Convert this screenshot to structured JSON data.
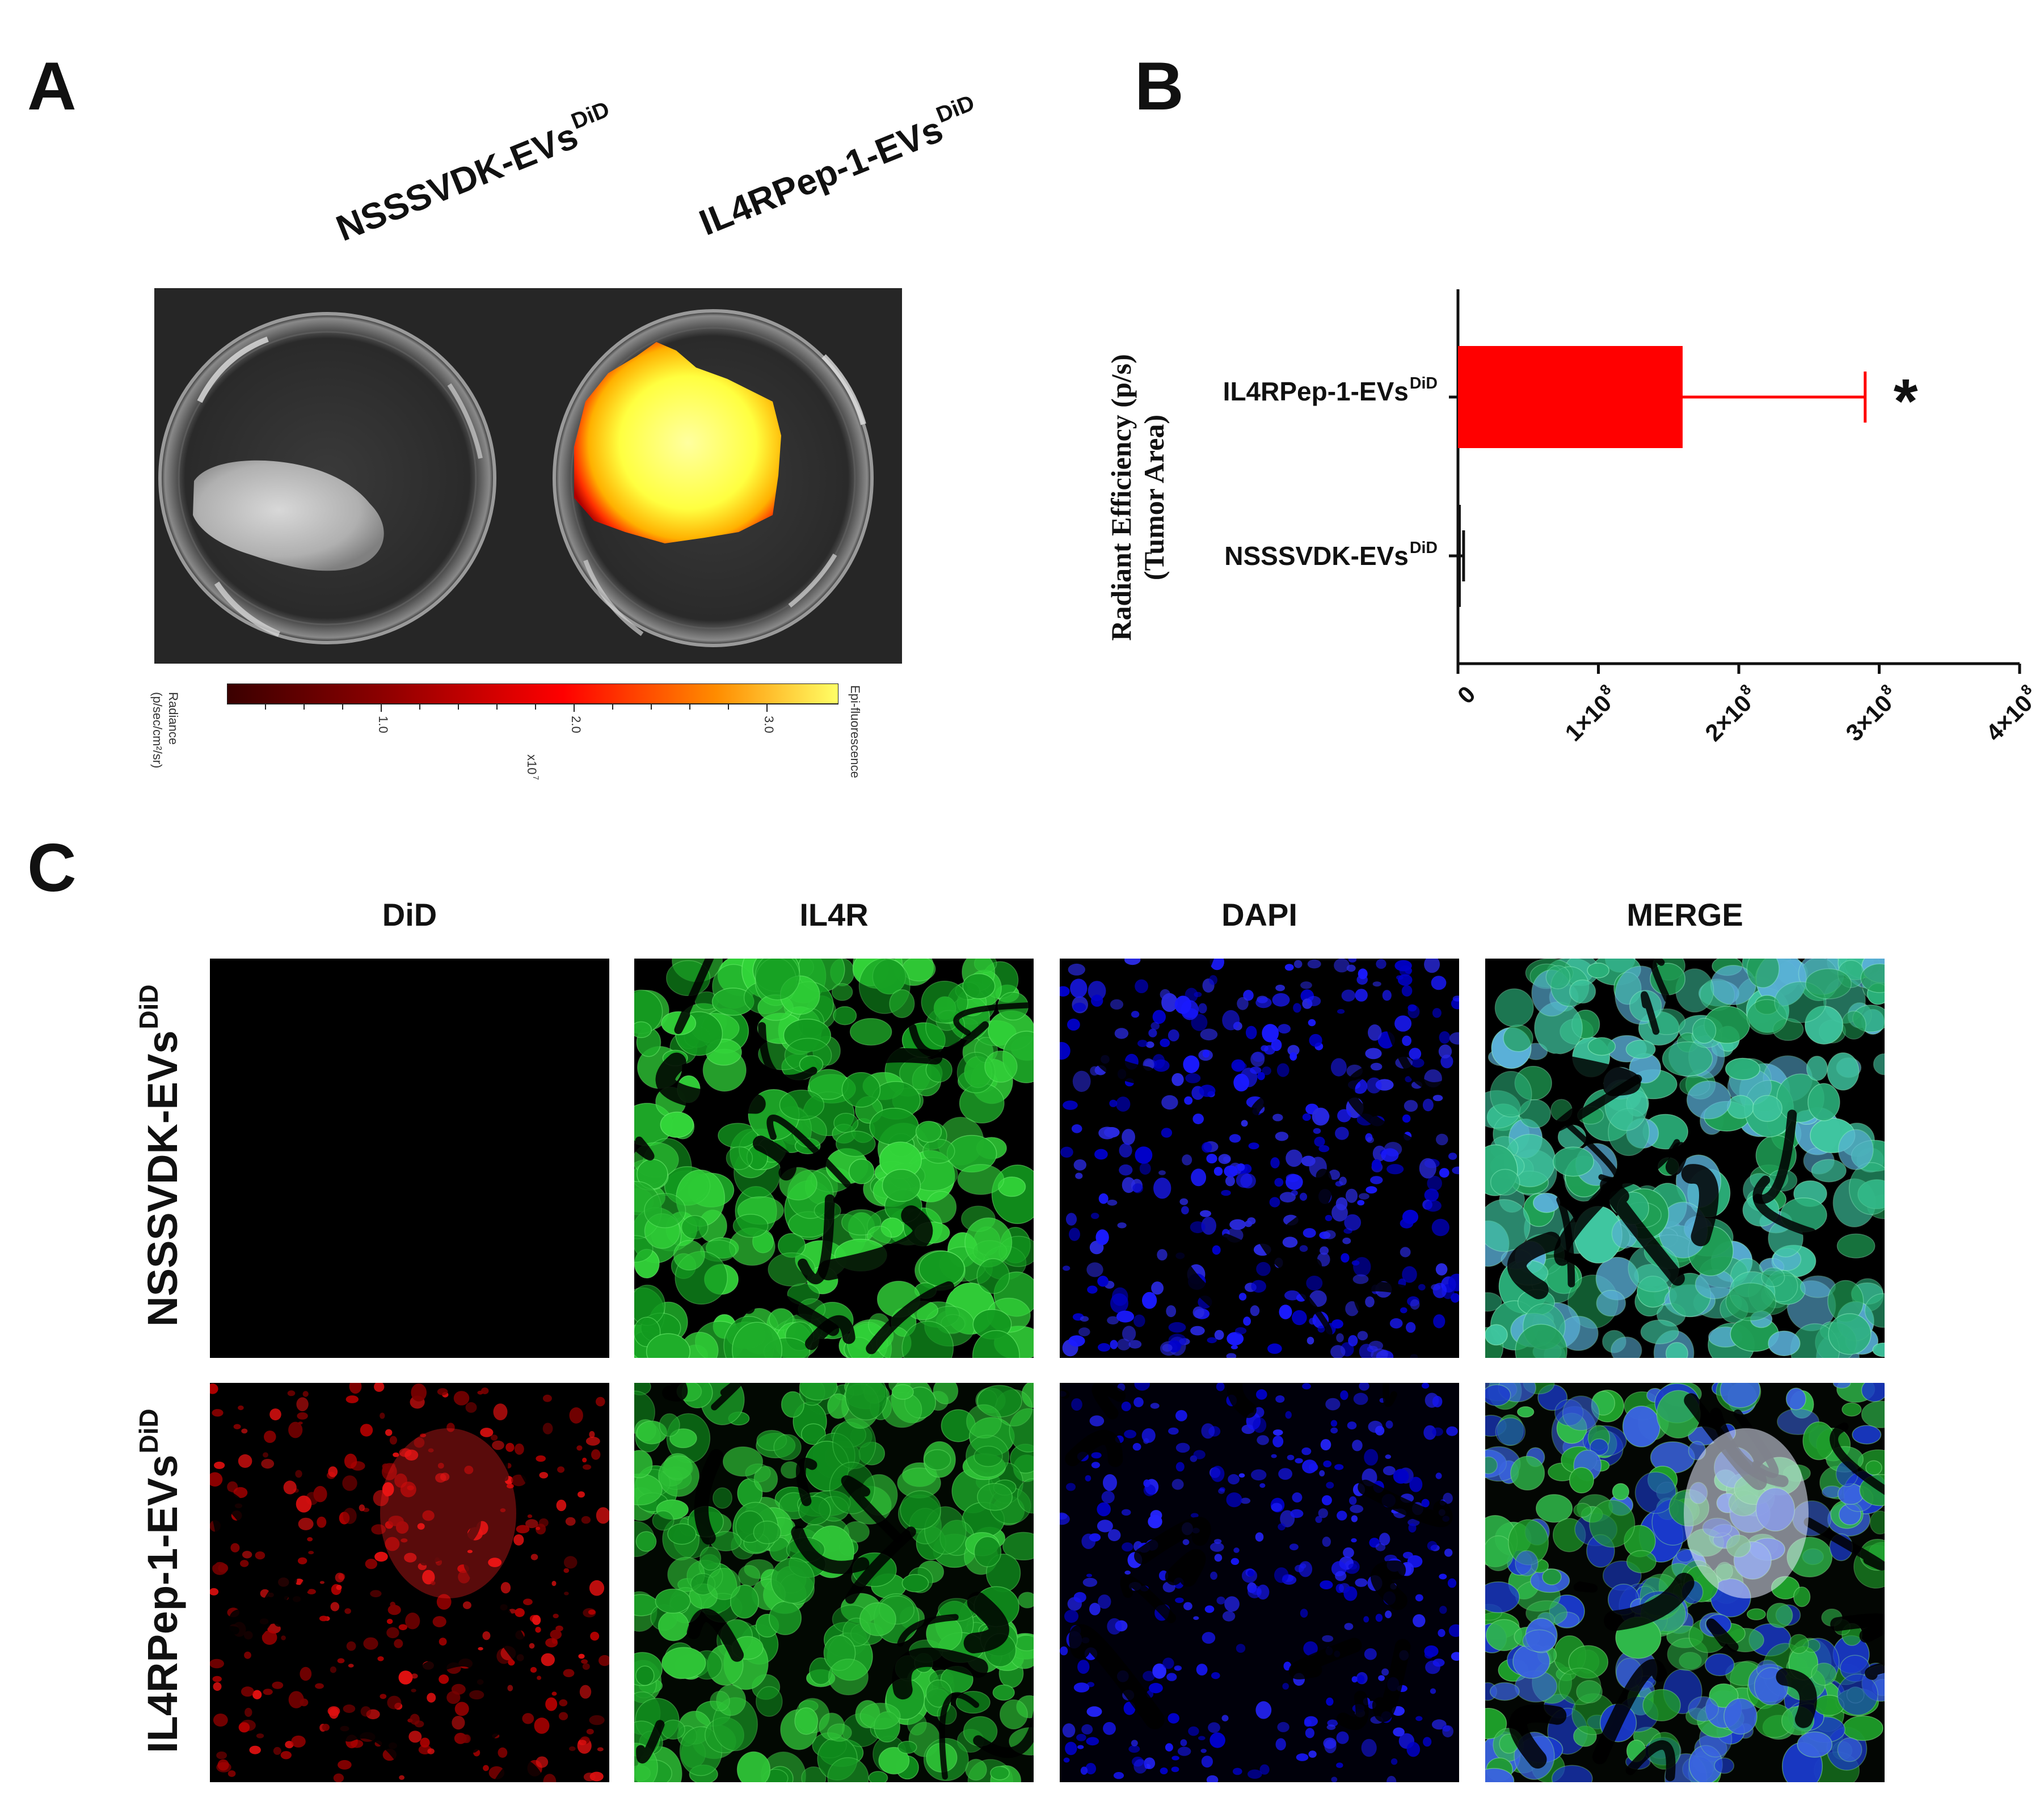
{
  "panels": {
    "a": "A",
    "b": "B",
    "c": "C"
  },
  "panel_a": {
    "label_left": "NSSSVDK-EVs",
    "label_left_sup": "DiD",
    "label_right": "IL4RPep-1-EVs",
    "label_right_sup": "DiD",
    "colorbar": {
      "left_title": "Radiance",
      "left_unit": "(p/sec/cm²/sr)",
      "ticks": [
        "1.0",
        "2.0",
        "3.0"
      ],
      "multiplier": "x10",
      "multiplier_exp": "7",
      "right_title": "Epi-fluorescence",
      "colors": [
        "#3a0000",
        "#8b0000",
        "#ff0000",
        "#ff8c00",
        "#ffff66"
      ]
    }
  },
  "panel_b": {
    "ylabel_line1": "Radiant Efficiency (p/s)",
    "ylabel_line2": "(Tumor Area)",
    "significance": "*",
    "bar_color": "#ff0000"
  },
  "chart_data": {
    "type": "bar",
    "orientation": "horizontal",
    "categories": [
      "IL4RPep-1-EVs^DiD",
      "NSSSVDK-EVs^DiD"
    ],
    "values": [
      160000000,
      2000000
    ],
    "error": [
      130000000,
      2000000
    ],
    "xlim": [
      0,
      400000000
    ],
    "xticks": [
      "0",
      "1×10^8",
      "2×10^8",
      "3×10^8",
      "4×10^8"
    ],
    "ylabel": "Radiant Efficiency (p/s) (Tumor Area)",
    "annotations": [
      "*"
    ]
  },
  "panel_c": {
    "columns": [
      "DiD",
      "IL4R",
      "DAPI",
      "MERGE"
    ],
    "rows": [
      {
        "label": "NSSSVDK-EVs",
        "sup": "DiD"
      },
      {
        "label": "IL4RPep-1-EVs",
        "sup": "DiD"
      }
    ]
  }
}
